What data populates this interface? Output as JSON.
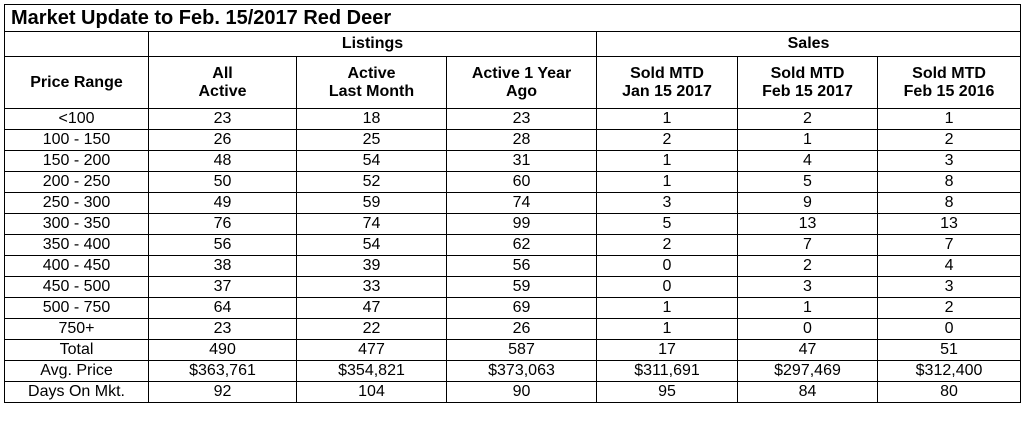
{
  "title": "Market Update to Feb. 15/2017 Red Deer",
  "groups": {
    "listings": "Listings",
    "sales": "Sales"
  },
  "columns": [
    {
      "line1": "Price Range",
      "line2": ""
    },
    {
      "line1": "All",
      "line2": "Active"
    },
    {
      "line1": "Active",
      "line2": "Last Month"
    },
    {
      "line1": "Active 1 Year",
      "line2": "Ago"
    },
    {
      "line1": "Sold MTD",
      "line2": "Jan 15 2017"
    },
    {
      "line1": "Sold MTD",
      "line2": "Feb 15 2017"
    },
    {
      "line1": "Sold MTD",
      "line2": "Feb 15 2016"
    }
  ],
  "rows": [
    [
      "<100",
      "23",
      "18",
      "23",
      "1",
      "2",
      "1"
    ],
    [
      "100 - 150",
      "26",
      "25",
      "28",
      "2",
      "1",
      "2"
    ],
    [
      "150 - 200",
      "48",
      "54",
      "31",
      "1",
      "4",
      "3"
    ],
    [
      "200 - 250",
      "50",
      "52",
      "60",
      "1",
      "5",
      "8"
    ],
    [
      "250 - 300",
      "49",
      "59",
      "74",
      "3",
      "9",
      "8"
    ],
    [
      "300 - 350",
      "76",
      "74",
      "99",
      "5",
      "13",
      "13"
    ],
    [
      "350 - 400",
      "56",
      "54",
      "62",
      "2",
      "7",
      "7"
    ],
    [
      "400 - 450",
      "38",
      "39",
      "56",
      "0",
      "2",
      "4"
    ],
    [
      "450 - 500",
      "37",
      "33",
      "59",
      "0",
      "3",
      "3"
    ],
    [
      "500 - 750",
      "64",
      "47",
      "69",
      "1",
      "1",
      "2"
    ],
    [
      "750+",
      "23",
      "22",
      "26",
      "1",
      "0",
      "0"
    ],
    [
      "Total",
      "490",
      "477",
      "587",
      "17",
      "47",
      "51"
    ],
    [
      "Avg. Price",
      "$363,761",
      "$354,821",
      "$373,063",
      "$311,691",
      "$297,469",
      "$312,400"
    ],
    [
      "Days On Mkt.",
      "92",
      "104",
      "90",
      "95",
      "84",
      "80"
    ]
  ]
}
